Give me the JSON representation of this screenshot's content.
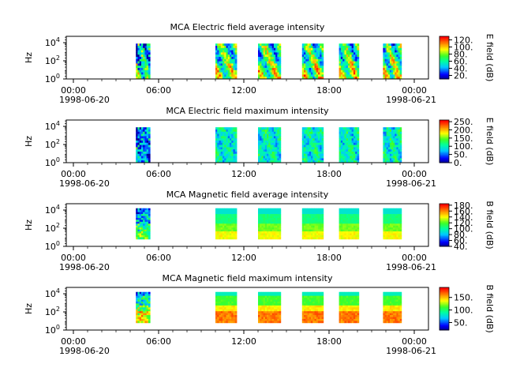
{
  "chart_data": [
    {
      "type": "heatmap",
      "title": "MCA  Electric field average intensity",
      "ylabel": "Hz",
      "colorbar_label": "E field (dB)",
      "colorbar_ticks": [
        "20.",
        "40.",
        "60.",
        "80.",
        "100.",
        "120."
      ],
      "colorbar_range": [
        10,
        130
      ],
      "y_ticks": [
        "10",
        "10",
        "10"
      ],
      "y_tick_exponents": [
        "0",
        "2",
        "4"
      ],
      "y_range_log10": [
        0,
        4.7
      ],
      "x_ticks": [
        "00:00",
        "06:00",
        "12:00",
        "18:00",
        "00:00"
      ],
      "x_date_labels": [
        "1998-06-20",
        "1998-06-21"
      ],
      "x_range_hours": [
        -0.5,
        25
      ],
      "data_blocks_hours": [
        [
          4.4,
          5.4
        ],
        [
          10.0,
          11.5
        ],
        [
          13.0,
          14.6
        ],
        [
          16.1,
          17.6
        ],
        [
          18.7,
          20.1
        ],
        [
          21.8,
          23.1
        ]
      ],
      "freq_extent_log10": [
        0,
        3.9
      ],
      "pattern": "electric"
    },
    {
      "type": "heatmap",
      "title": "MCA  Electric field maximum intensity",
      "ylabel": "Hz",
      "colorbar_label": "E field (dB)",
      "colorbar_ticks": [
        "0.",
        "50.",
        "100.",
        "150.",
        "200.",
        "250."
      ],
      "colorbar_range": [
        0,
        260
      ],
      "y_ticks": [
        "10",
        "10",
        "10"
      ],
      "y_tick_exponents": [
        "0",
        "2",
        "4"
      ],
      "y_range_log10": [
        0,
        4.7
      ],
      "x_ticks": [
        "00:00",
        "06:00",
        "12:00",
        "18:00",
        "00:00"
      ],
      "x_date_labels": [
        "1998-06-20",
        "1998-06-21"
      ],
      "x_range_hours": [
        -0.5,
        25
      ],
      "data_blocks_hours": [
        [
          4.4,
          5.4
        ],
        [
          10.0,
          11.5
        ],
        [
          13.0,
          14.6
        ],
        [
          16.1,
          17.6
        ],
        [
          18.7,
          20.1
        ],
        [
          21.8,
          23.1
        ]
      ],
      "freq_extent_log10": [
        0,
        3.9
      ],
      "pattern": "electric-max"
    },
    {
      "type": "heatmap",
      "title": "MCA  Magnetic field average intensity",
      "ylabel": "Hz",
      "colorbar_label": "B field (dB)",
      "colorbar_ticks": [
        "40.",
        "60.",
        "80.",
        "100.",
        "120.",
        "140.",
        "160.",
        "180."
      ],
      "colorbar_range": [
        40,
        185
      ],
      "y_ticks": [
        "10",
        "10",
        "10"
      ],
      "y_tick_exponents": [
        "0",
        "2",
        "4"
      ],
      "y_range_log10": [
        0,
        4.7
      ],
      "x_ticks": [
        "00:00",
        "06:00",
        "12:00",
        "18:00",
        "00:00"
      ],
      "x_date_labels": [
        "1998-06-20",
        "1998-06-21"
      ],
      "x_range_hours": [
        -0.5,
        25
      ],
      "data_blocks_hours": [
        [
          4.4,
          5.4
        ],
        [
          10.0,
          11.5
        ],
        [
          13.0,
          14.6
        ],
        [
          16.1,
          17.6
        ],
        [
          18.7,
          20.1
        ],
        [
          21.8,
          23.1
        ]
      ],
      "freq_extent_log10": [
        0.8,
        4.2
      ],
      "pattern": "magnetic"
    },
    {
      "type": "heatmap",
      "title": "MCA  Magnetic field maximum intensity",
      "ylabel": "Hz",
      "colorbar_label": "B field (dB)",
      "colorbar_ticks": [
        "50.",
        "100.",
        "150."
      ],
      "colorbar_range": [
        20,
        190
      ],
      "y_ticks": [
        "10",
        "10",
        "10"
      ],
      "y_tick_exponents": [
        "0",
        "2",
        "4"
      ],
      "y_range_log10": [
        0,
        4.7
      ],
      "x_ticks": [
        "00:00",
        "06:00",
        "12:00",
        "18:00",
        "00:00"
      ],
      "x_date_labels": [
        "1998-06-20",
        "1998-06-21"
      ],
      "x_range_hours": [
        -0.5,
        25
      ],
      "data_blocks_hours": [
        [
          4.4,
          5.4
        ],
        [
          10.0,
          11.5
        ],
        [
          13.0,
          14.6
        ],
        [
          16.1,
          17.6
        ],
        [
          18.7,
          20.1
        ],
        [
          21.8,
          23.1
        ]
      ],
      "freq_extent_log10": [
        0.8,
        4.2
      ],
      "pattern": "magnetic-max"
    }
  ]
}
